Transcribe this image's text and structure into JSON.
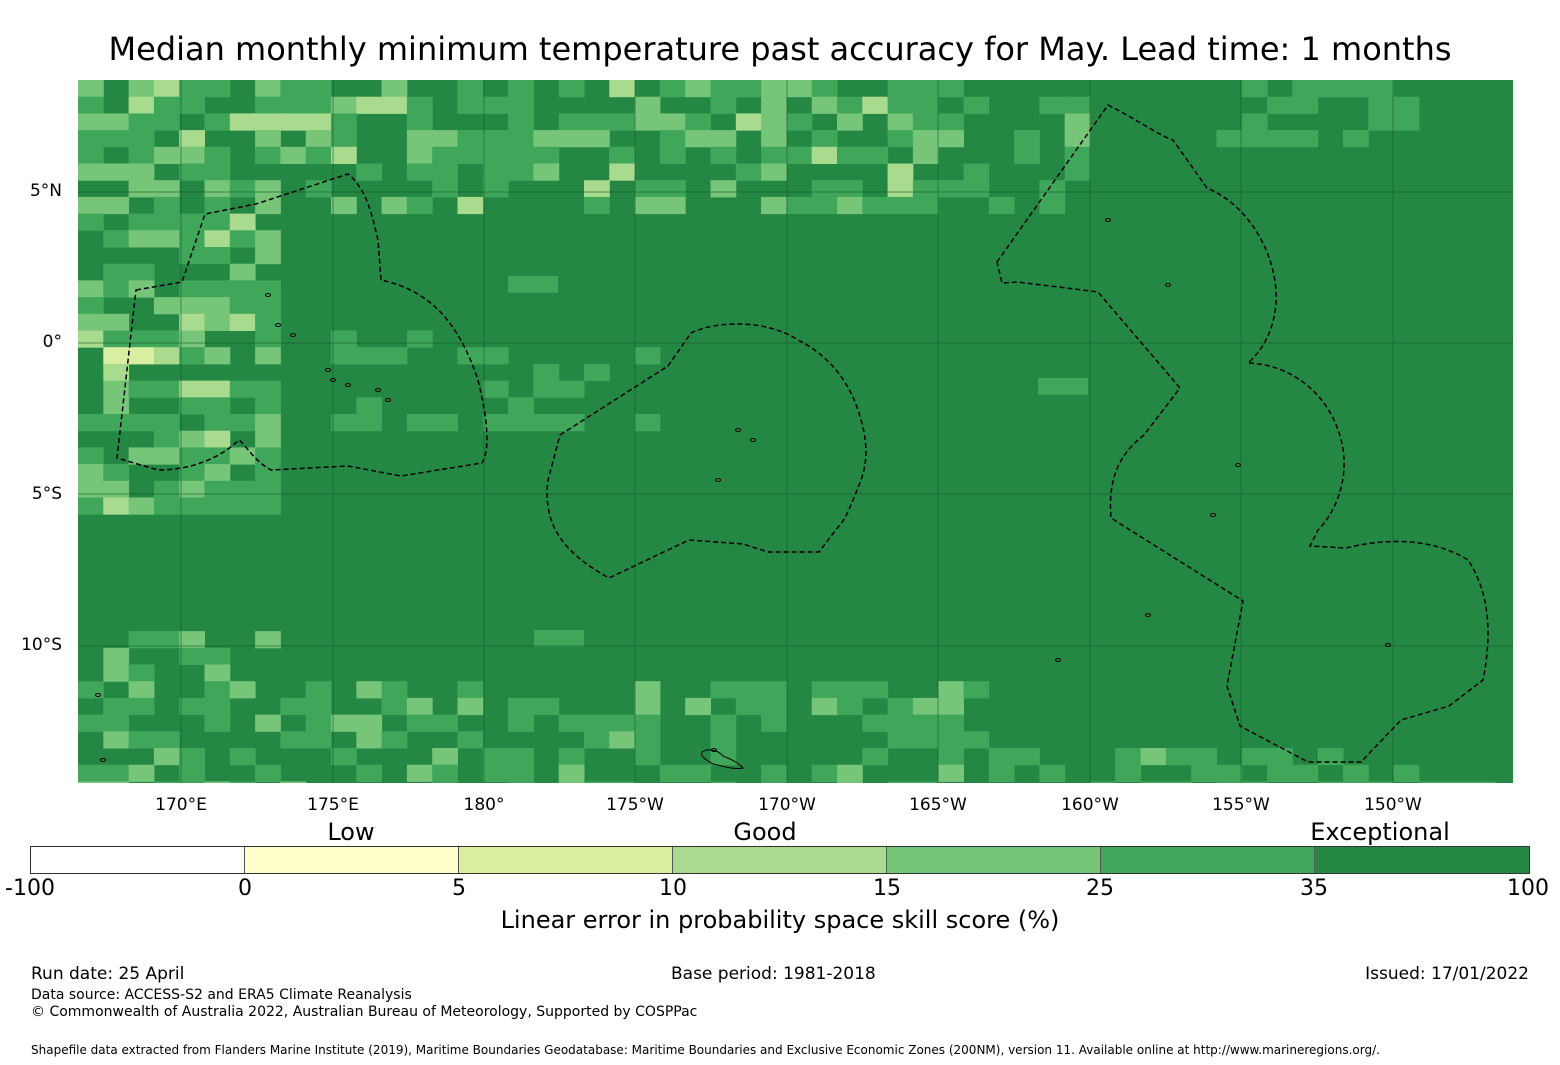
{
  "title": "Median monthly minimum temperature past accuracy for May. Lead time: 1 months",
  "map": {
    "lat_labels": [
      "5°N",
      "0°",
      "5°S",
      "10°S"
    ],
    "lon_labels": [
      "170°E",
      "175°E",
      "180°",
      "175°W",
      "170°W",
      "165°W",
      "160°W",
      "155°W",
      "150°W"
    ],
    "category_labels": [
      "Low",
      "Good",
      "Exceptional"
    ],
    "colors": {
      "ocean_base": "#248744",
      "c_25_35": "#40a75a",
      "c_15_25": "#77c579",
      "c_10_15": "#a9db8f",
      "c_5_10": "#d8efa2",
      "c_0_5": "#ffffcc",
      "c_neg": "#ffffff",
      "boundary": "#000000"
    }
  },
  "colorbar": {
    "ticks": [
      "-100",
      "0",
      "5",
      "10",
      "15",
      "25",
      "35",
      "100"
    ],
    "colors": [
      "#ffffff",
      "#ffffcc",
      "#d8efa2",
      "#a9db8f",
      "#77c579",
      "#40a75a",
      "#248744"
    ],
    "title": "Linear error in probability space skill score (%)"
  },
  "footer": {
    "run_date": "Run date: 25 April",
    "base_period": "Base period: 1981-2018",
    "issued": "Issued: 17/01/2022",
    "data_source": "Data source: ACCESS-S2 and ERA5 Climate Reanalysis",
    "copyright": "© Commonwealth of Australia 2022, Australian Bureau of Meteorology, Supported by COSPPac",
    "shapefile": "Shapefile data extracted from Flanders Marine Institute (2019), Maritime Boundaries Geodatabase: Maritime Boundaries and Exclusive Economic Zones (200NM), version 11. Available online at http://www.marineregions.org/."
  }
}
